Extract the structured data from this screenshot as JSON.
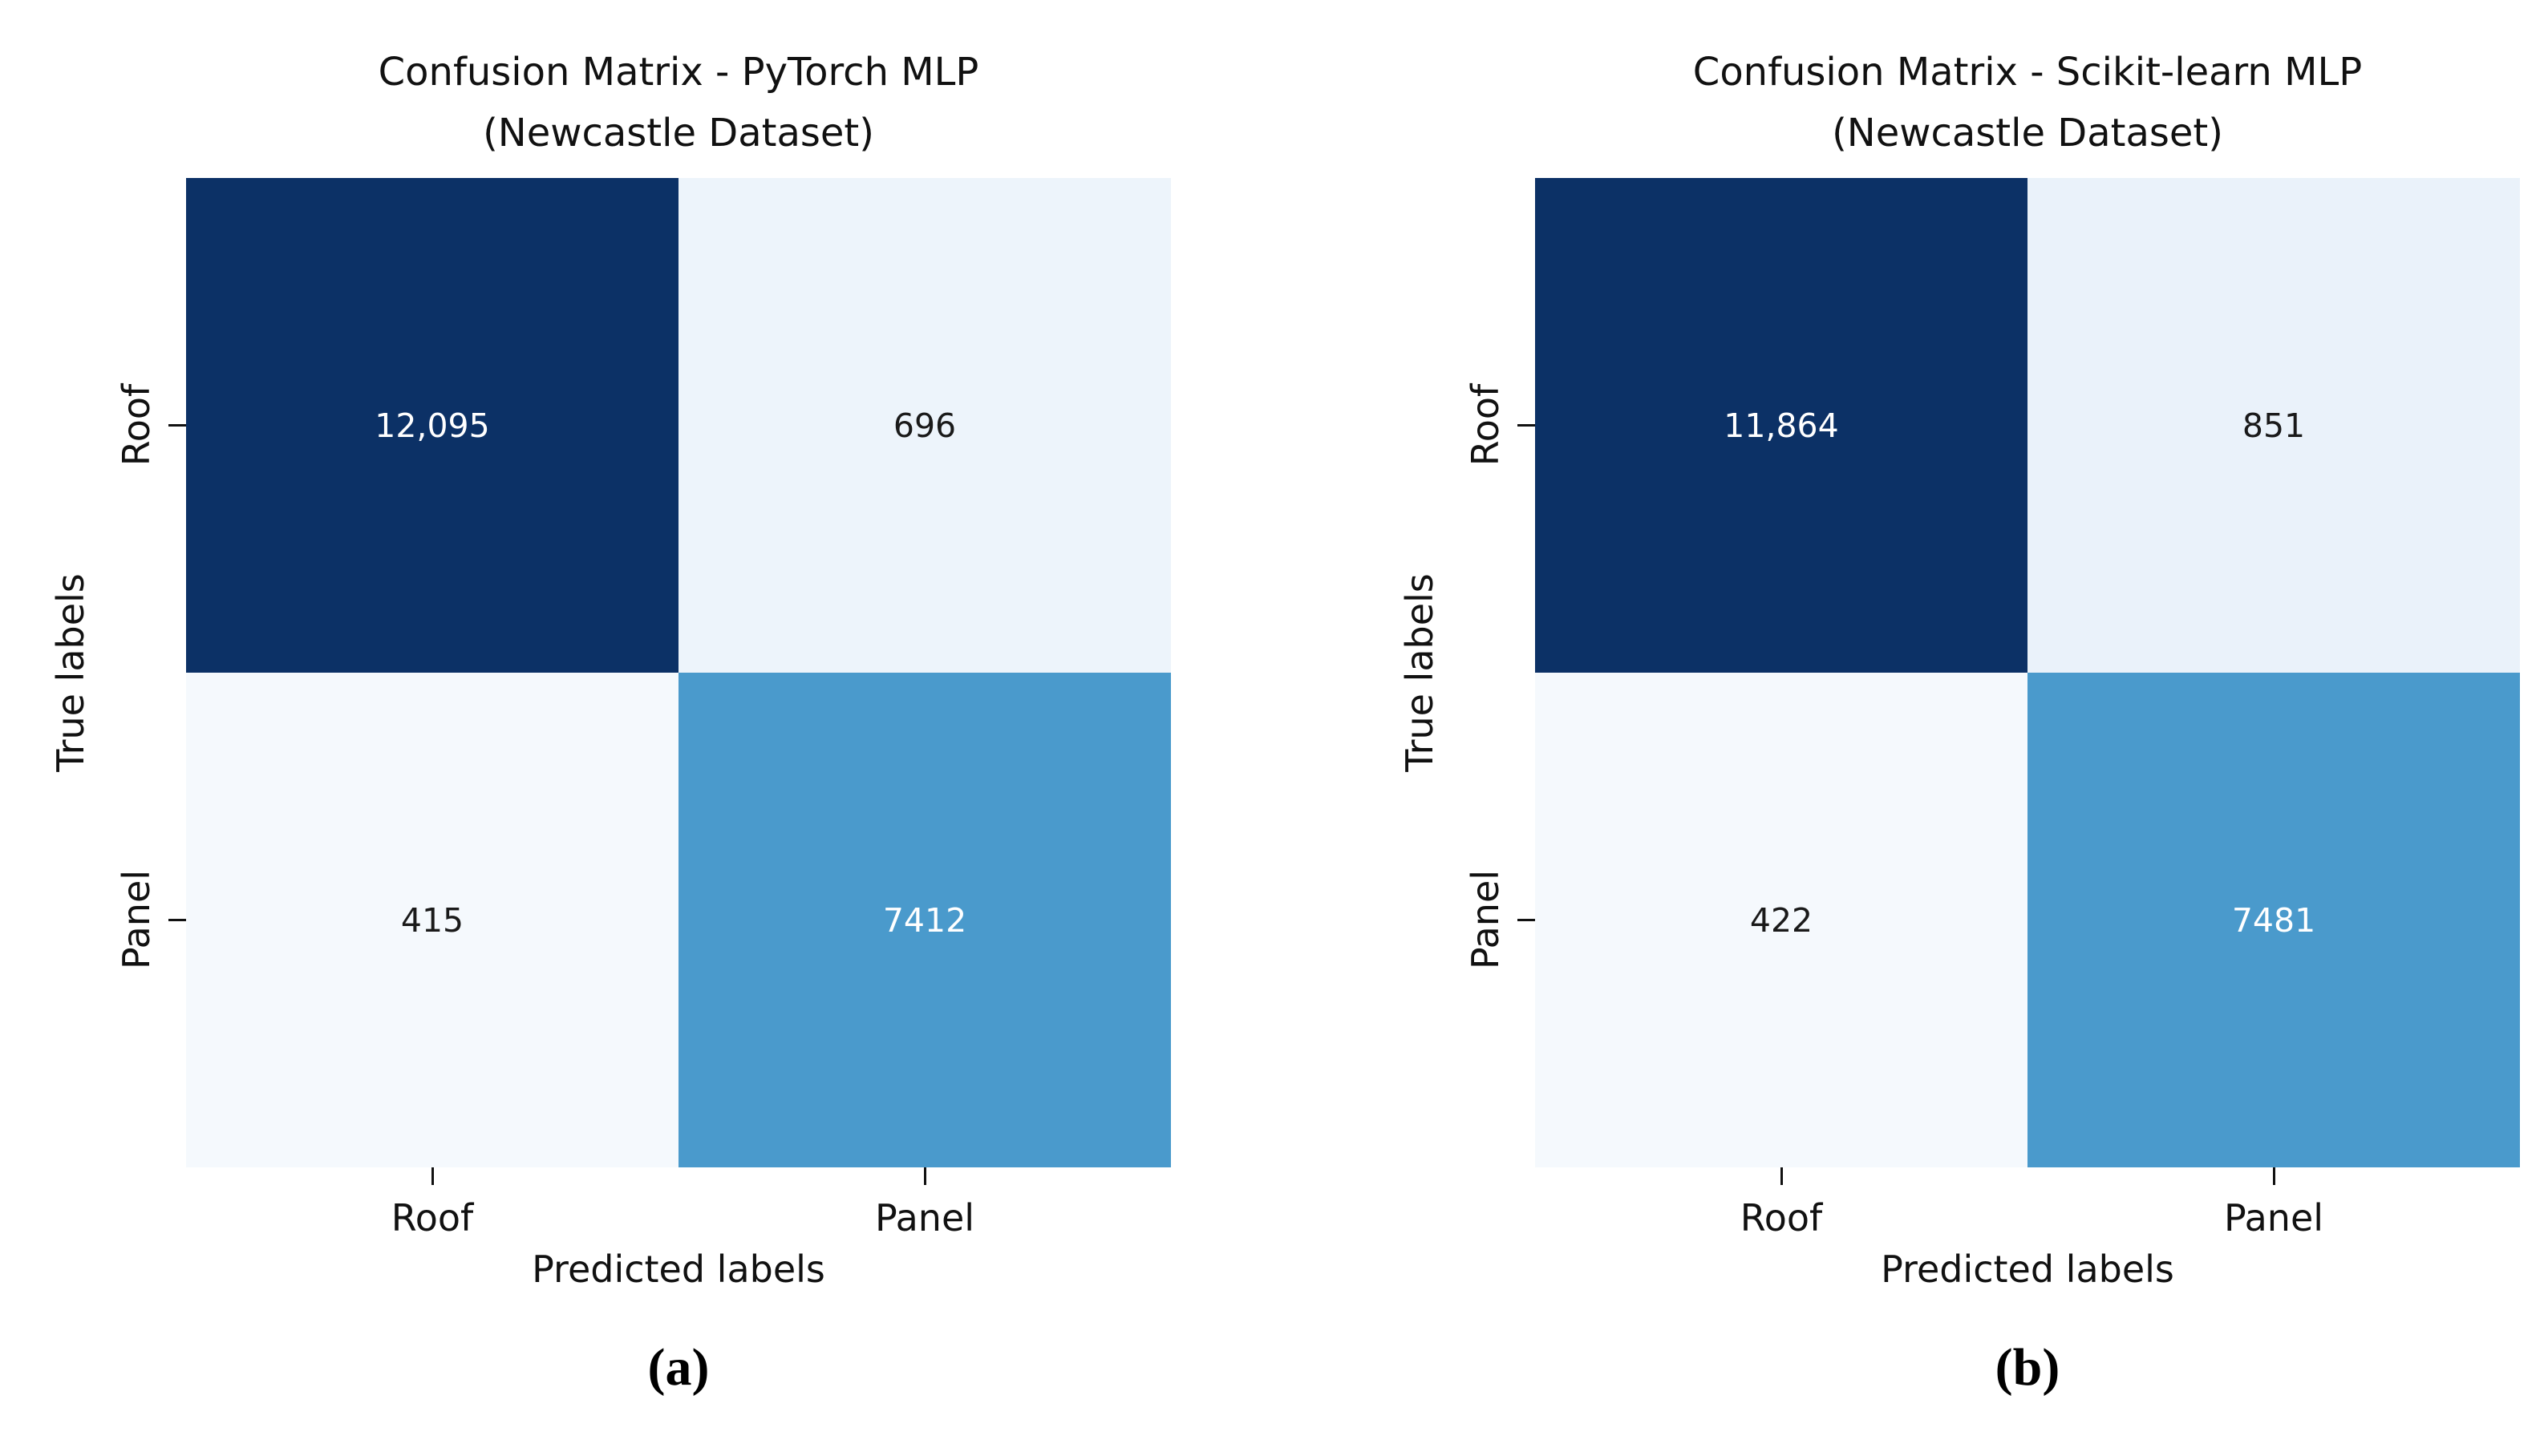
{
  "figures": [
    {
      "id": "a",
      "title_line1": "Confusion Matrix - PyTorch MLP",
      "title_line2": "(Newcastle Dataset)",
      "ylabel": "True labels",
      "xlabel": "Predicted labels",
      "yticks": [
        "Roof",
        "Panel"
      ],
      "xticks": [
        "Roof",
        "Panel"
      ],
      "caption": "(a)",
      "cells": [
        {
          "value": "12,095",
          "bg": "#0c3166",
          "fg": "#ffffff"
        },
        {
          "value": "696",
          "bg": "#edf4fb",
          "fg": "#1a1a1a"
        },
        {
          "value": "415",
          "bg": "#f5f9fd",
          "fg": "#1a1a1a"
        },
        {
          "value": "7412",
          "bg": "#4a9acc",
          "fg": "#ffffff"
        }
      ]
    },
    {
      "id": "b",
      "title_line1": "Confusion Matrix - Scikit-learn MLP",
      "title_line2": "(Newcastle Dataset)",
      "ylabel": "True labels",
      "xlabel": "Predicted labels",
      "yticks": [
        "Roof",
        "Panel"
      ],
      "xticks": [
        "Roof",
        "Panel"
      ],
      "caption": "(b)",
      "cells": [
        {
          "value": "11,864",
          "bg": "#0c3166",
          "fg": "#ffffff"
        },
        {
          "value": "851",
          "bg": "#eaf2fa",
          "fg": "#1a1a1a"
        },
        {
          "value": "422",
          "bg": "#f5f9fd",
          "fg": "#1a1a1a"
        },
        {
          "value": "7481",
          "bg": "#4a9acc",
          "fg": "#ffffff"
        }
      ]
    }
  ],
  "chart_data": [
    {
      "type": "heatmap",
      "title": "Confusion Matrix - PyTorch MLP (Newcastle Dataset)",
      "xlabel": "Predicted labels",
      "ylabel": "True labels",
      "x_categories": [
        "Roof",
        "Panel"
      ],
      "y_categories": [
        "Roof",
        "Panel"
      ],
      "values": [
        [
          12095,
          696
        ],
        [
          415,
          7412
        ]
      ],
      "cell_annotations": [
        [
          "12,095",
          "696"
        ],
        [
          "415",
          "7412"
        ]
      ],
      "colormap": "Blues",
      "legend": "none",
      "grid": false,
      "caption": "(a)"
    },
    {
      "type": "heatmap",
      "title": "Confusion Matrix - Scikit-learn MLP (Newcastle Dataset)",
      "xlabel": "Predicted labels",
      "ylabel": "True labels",
      "x_categories": [
        "Roof",
        "Panel"
      ],
      "y_categories": [
        "Roof",
        "Panel"
      ],
      "values": [
        [
          11864,
          851
        ],
        [
          422,
          7481
        ]
      ],
      "cell_annotations": [
        [
          "11,864",
          "851"
        ],
        [
          "422",
          "7481"
        ]
      ],
      "colormap": "Blues",
      "legend": "none",
      "grid": false,
      "caption": "(b)"
    }
  ]
}
